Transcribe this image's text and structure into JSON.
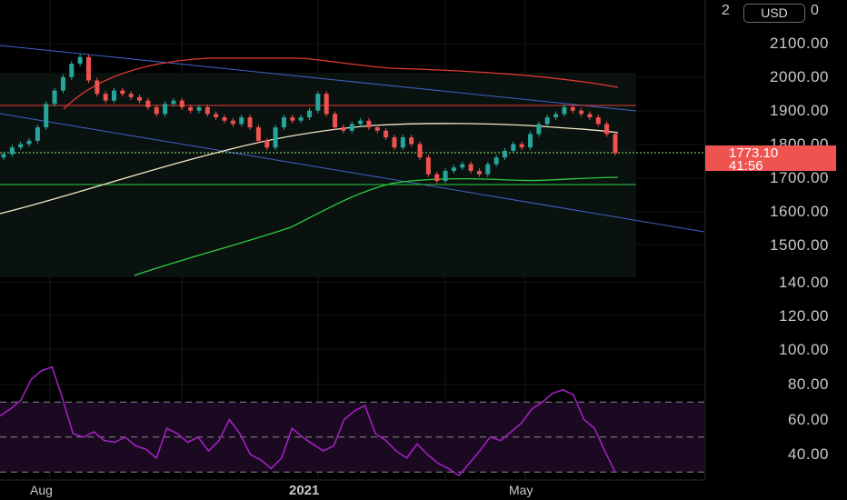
{
  "header": {
    "scale_left": "2",
    "currency": "USD",
    "scale_right": "0"
  },
  "price_scale": [
    "2100.00",
    "2000.00",
    "1900.00",
    "1800.00",
    "1700.00",
    "1600.00",
    "1500.00"
  ],
  "current_price": {
    "value": "1773.10",
    "countdown": "41:56",
    "color": "#ef5350"
  },
  "indicator_scale": [
    "140.00",
    "120.00",
    "100.00",
    "80.00",
    "60.00",
    "40.00"
  ],
  "time_axis": [
    "Aug",
    "2021",
    "May"
  ],
  "colors": {
    "up_candle": "#26a69a",
    "down_candle": "#ef5350",
    "ma_red": "#e53935",
    "ma_cream": "#f3e9c6",
    "ma_green": "#2ecc40",
    "channel": "#3f63c8",
    "rsi": "#a020c0"
  },
  "chart_data": {
    "type": "candlestick",
    "price_range": [
      1450,
      2130
    ],
    "rsi_range": [
      25,
      150
    ],
    "rsi_bands": [
      30,
      50,
      70
    ],
    "approx_closes": [
      1770,
      1790,
      1800,
      1810,
      1850,
      1920,
      1960,
      2000,
      2040,
      2060,
      1990,
      1950,
      1930,
      1960,
      1950,
      1940,
      1930,
      1910,
      1890,
      1920,
      1930,
      1910,
      1900,
      1910,
      1890,
      1880,
      1870,
      1860,
      1880,
      1850,
      1810,
      1790,
      1850,
      1880,
      1870,
      1880,
      1900,
      1950,
      1890,
      1850,
      1840,
      1860,
      1870,
      1850,
      1840,
      1820,
      1790,
      1820,
      1800,
      1760,
      1710,
      1690,
      1720,
      1730,
      1740,
      1720,
      1710,
      1740,
      1760,
      1780,
      1800,
      1790,
      1830,
      1860,
      1880,
      1890,
      1910,
      1900,
      1890,
      1880,
      1860,
      1830,
      1773
    ],
    "rsi_values": [
      62,
      66,
      71,
      83,
      88,
      90,
      72,
      52,
      50,
      53,
      48,
      47,
      50,
      45,
      43,
      38,
      55,
      52,
      47,
      50,
      42,
      48,
      60,
      52,
      40,
      37,
      32,
      38,
      55,
      50,
      46,
      42,
      45,
      60,
      65,
      68,
      52,
      48,
      42,
      38,
      46,
      40,
      35,
      32,
      28,
      35,
      42,
      50,
      48,
      53,
      58,
      66,
      70,
      75,
      77,
      74,
      60,
      55,
      42,
      30
    ]
  }
}
